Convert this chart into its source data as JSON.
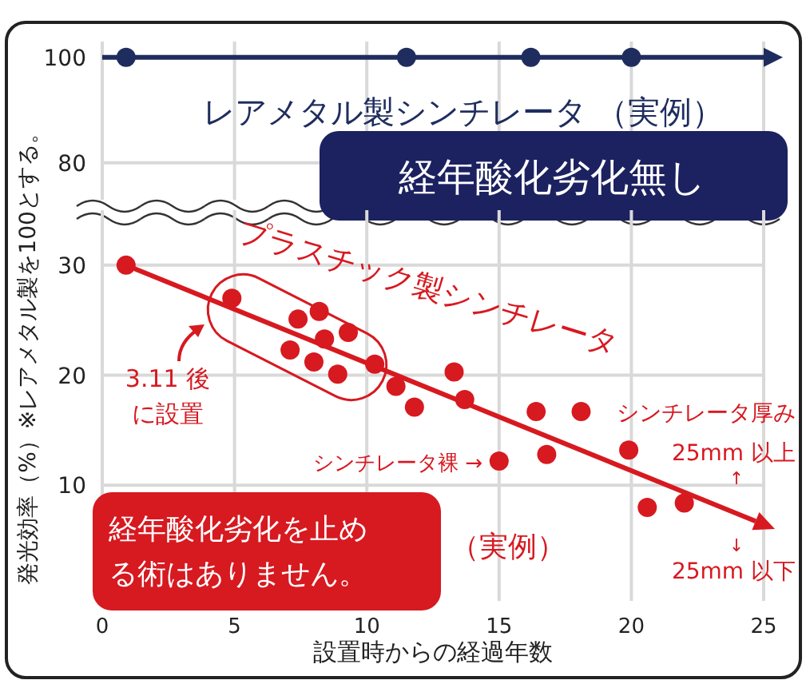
{
  "chart_data": [
    {
      "type": "scatter",
      "xlim": [
        0,
        25
      ],
      "ylim": [
        73,
        103
      ],
      "yticks": [
        80,
        100
      ],
      "tick_labels": "y",
      "grid": true,
      "ref_lines": [
        {
          "axis": "y",
          "value": 100,
          "color": "#1f2d5e"
        }
      ],
      "series": [
        {
          "marker": "circle",
          "color": "#1f2d5e",
          "x": [
            0.9,
            11.5,
            16.2,
            20.0
          ],
          "values": [
            100,
            100,
            100,
            100
          ]
        }
      ],
      "annotations": [
        "レアメタル製シンチレータ （実例）",
        "経年酸化劣化無し"
      ]
    },
    {
      "type": "scatter",
      "xlim": [
        0,
        25
      ],
      "ylim": [
        -0.5,
        35
      ],
      "xticks": [
        0,
        5,
        10,
        15,
        20,
        25
      ],
      "yticks": [
        10,
        20,
        30
      ],
      "grid": true,
      "xlabel": "設置時からの経過年数",
      "ylabel": "発光効率（%）※レアメタル製を100とする。",
      "series": [
        {
          "marker": "circle",
          "color": "#d71920",
          "x": [
            0.9,
            4.9,
            7.4,
            8.2,
            9.3,
            8.4,
            7.1,
            8.0,
            8.9,
            10.3,
            11.1,
            11.8,
            13.3,
            13.7,
            16.4,
            18.1,
            15.0,
            16.8,
            19.9,
            20.6,
            22.0
          ],
          "values": [
            30,
            27.0,
            25.1,
            25.8,
            23.9,
            23.3,
            22.3,
            21.2,
            20.1,
            21.0,
            19.0,
            17.1,
            20.3,
            17.8,
            16.7,
            16.7,
            12.2,
            12.8,
            13.2,
            8.0,
            8.4
          ]
        }
      ],
      "annotations": [
        "プラスチック製シンチレータ",
        "3.11 後に設置",
        "シンチレータ裸 →",
        "シンチレータ厚み\n25mm 以上",
        "↑",
        "↓",
        "25mm 以下",
        "経年酸化劣化を止める術はありません。",
        "（実例）"
      ]
    }
  ]
}
